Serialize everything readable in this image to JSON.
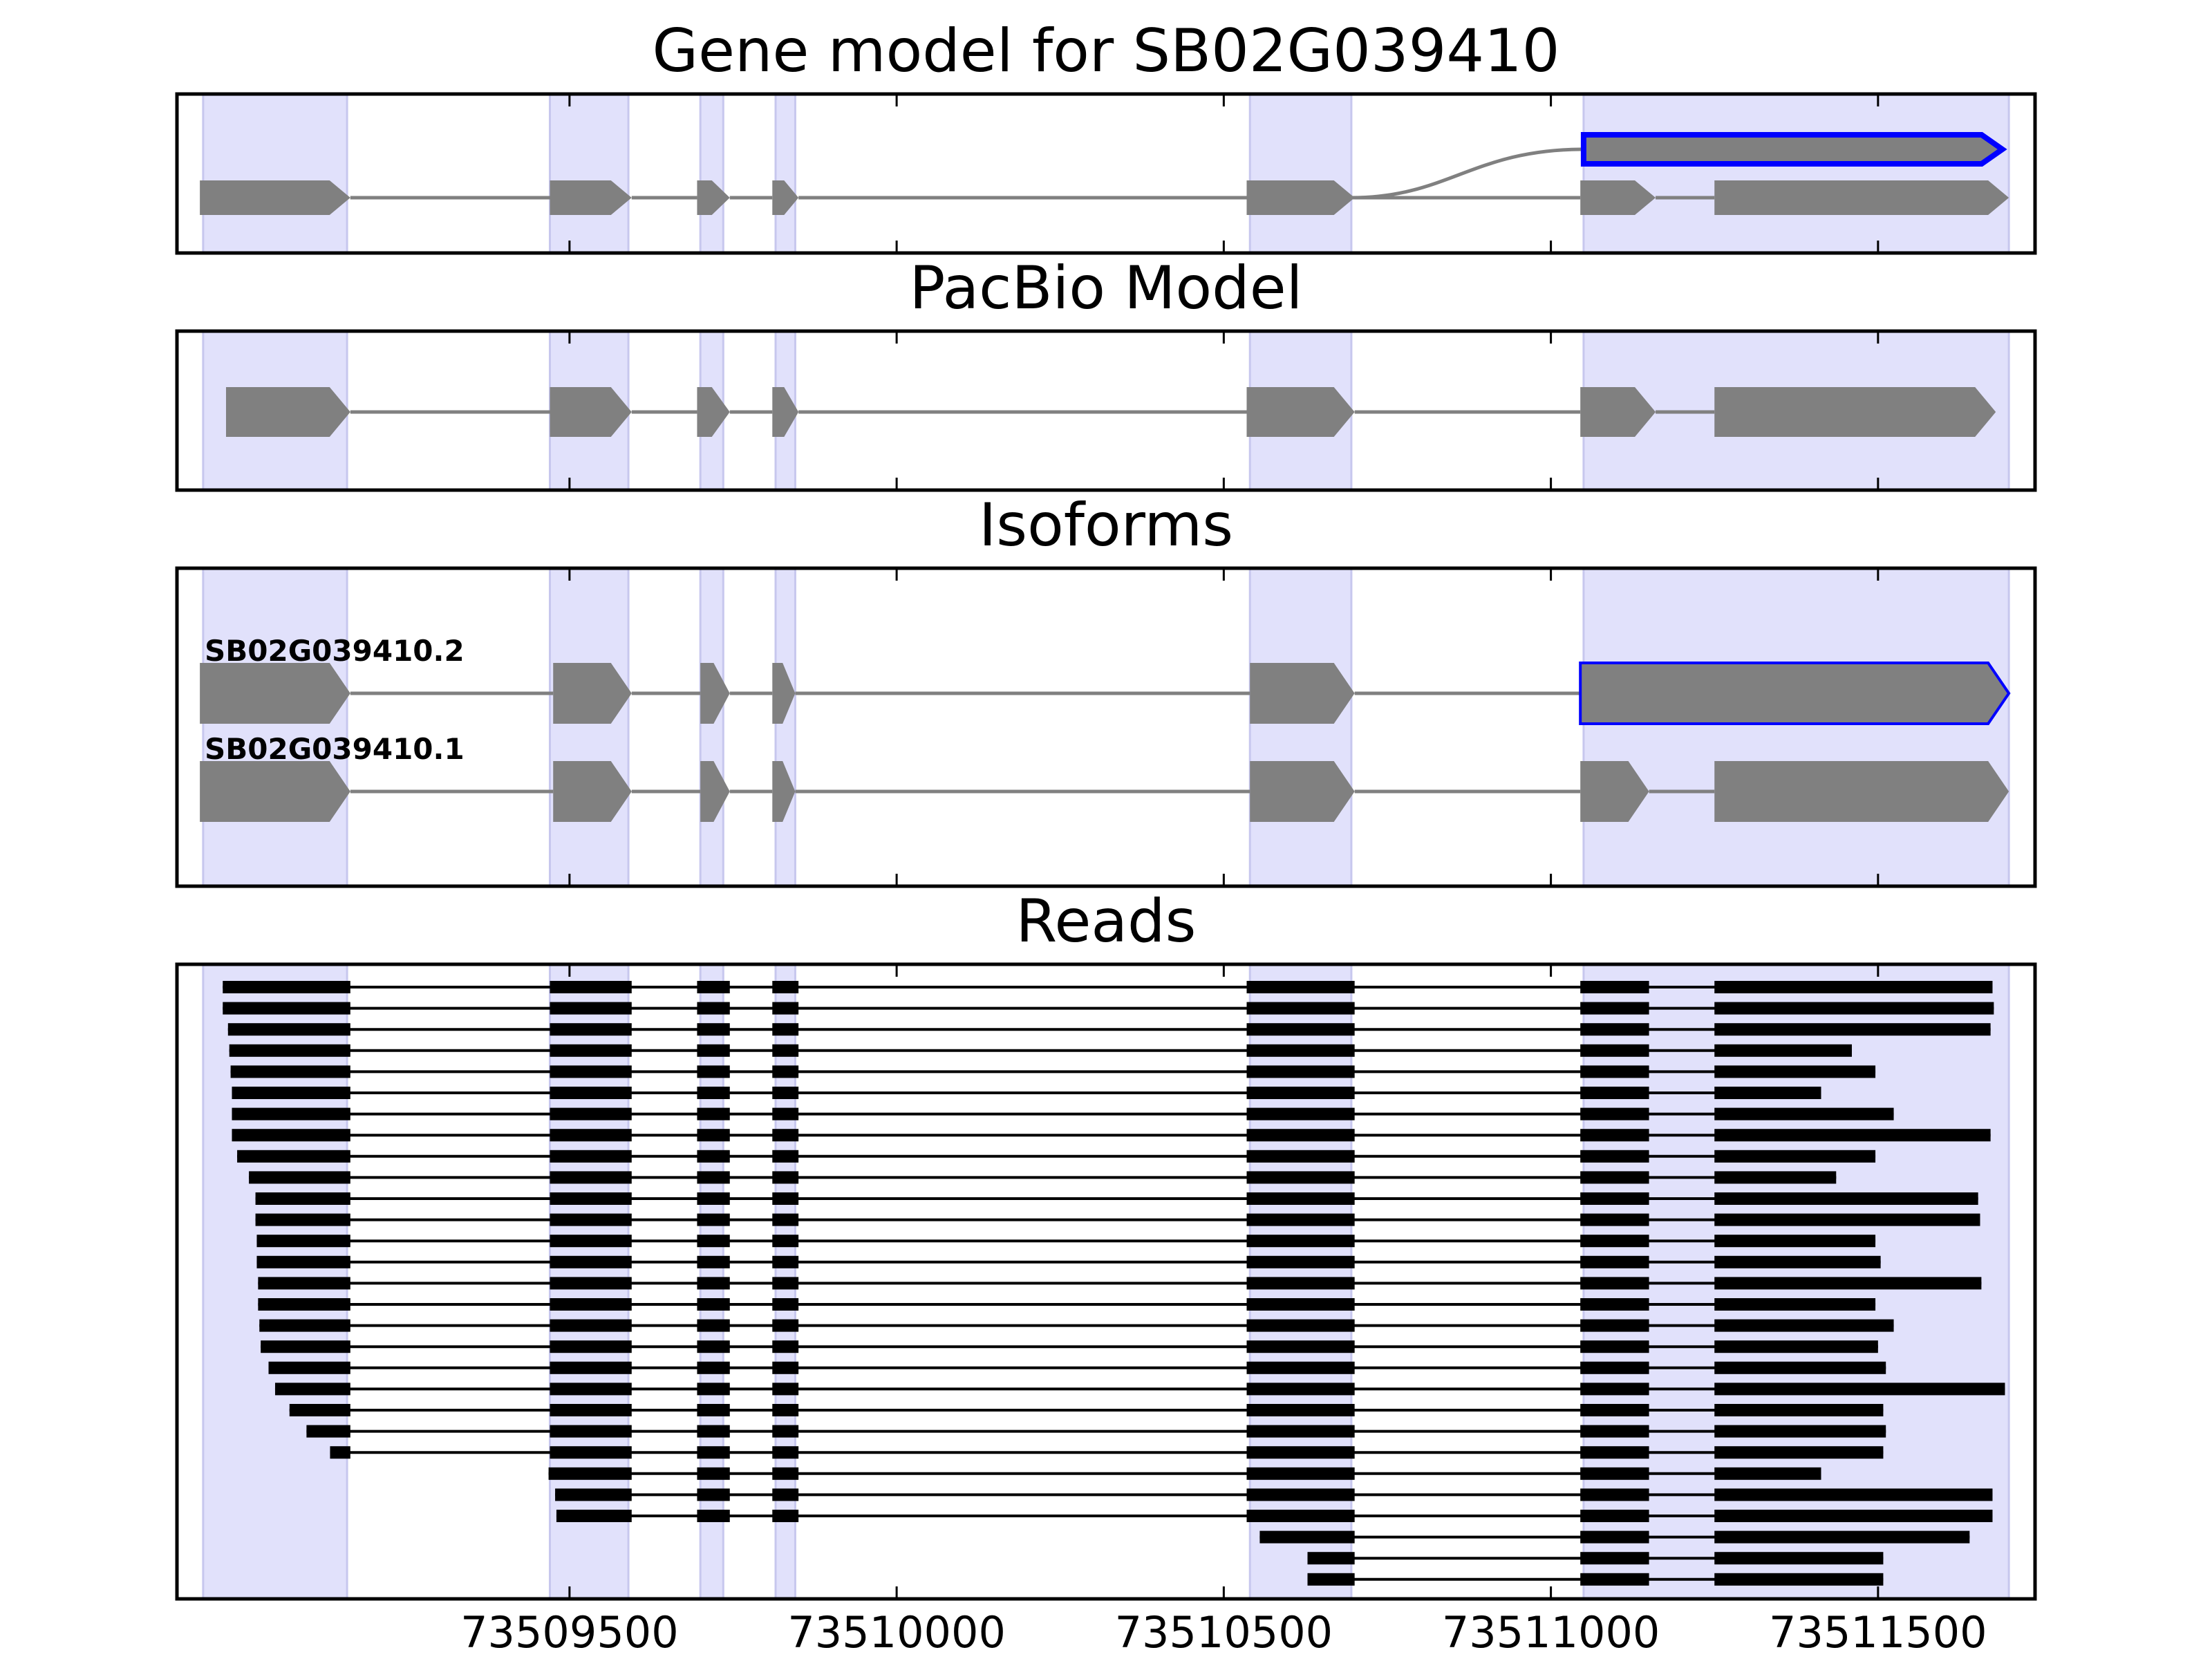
{
  "chart_data": {
    "type": "gene-structure",
    "xlim": [
      73508900,
      73511740
    ],
    "x_ticks": [
      {
        "value": 73509500,
        "label": "73509500"
      },
      {
        "value": 73510000,
        "label": "73510000"
      },
      {
        "value": 73510500,
        "label": "73510500"
      },
      {
        "value": 73511000,
        "label": "73511000"
      },
      {
        "value": 73511500,
        "label": "73511500"
      }
    ],
    "x_tick_labels_on": "Reads",
    "exon_highlights": [
      [
        73508940,
        73509160
      ],
      [
        73509470,
        73509590
      ],
      [
        73509700,
        73509735
      ],
      [
        73509815,
        73509845
      ],
      [
        73510540,
        73510695
      ],
      [
        73511050,
        73511700
      ]
    ],
    "colors": {
      "exon": "#808080",
      "intron": "#808080",
      "highlight": "#e1e1fb",
      "highlight_edge": "#c7c7ee",
      "selected_outline": "#0000ff",
      "read": "#000000"
    },
    "panels": [
      {
        "title": "Gene model for SB02G039410",
        "rows": [
          {
            "exons": [
              [
                73511050,
                73511690
              ]
            ],
            "selected": true,
            "branch_from": 73510695
          },
          {
            "exons": [
              [
                73508935,
                73509165
              ],
              [
                73509470,
                73509595
              ],
              [
                73509695,
                73509745
              ],
              [
                73509810,
                73509850
              ],
              [
                73510535,
                73510700
              ],
              [
                73511045,
                73511160
              ],
              [
                73511250,
                73511700
              ]
            ]
          }
        ]
      },
      {
        "title": "PacBio Model",
        "rows": [
          {
            "exons": [
              [
                73508975,
                73509165
              ],
              [
                73509470,
                73509595
              ],
              [
                73509695,
                73509745
              ],
              [
                73509810,
                73509850
              ],
              [
                73510535,
                73510700
              ],
              [
                73511045,
                73511160
              ],
              [
                73511250,
                73511680
              ]
            ]
          }
        ]
      },
      {
        "title": "Isoforms",
        "rows": [
          {
            "label": "SB02G039410.2",
            "selected": true,
            "exons": [
              [
                73508935,
                73509165
              ],
              [
                73509475,
                73509595
              ],
              [
                73509700,
                73509745
              ],
              [
                73509810,
                73509845
              ],
              [
                73510540,
                73510700
              ],
              [
                73511045,
                73511700
              ]
            ]
          },
          {
            "label": "SB02G039410.1",
            "exons": [
              [
                73508935,
                73509165
              ],
              [
                73509475,
                73509595
              ],
              [
                73509700,
                73509745
              ],
              [
                73509810,
                73509845
              ],
              [
                73510540,
                73510700
              ],
              [
                73511045,
                73511150
              ],
              [
                73511250,
                73511700
              ]
            ]
          }
        ]
      },
      {
        "title": "Reads",
        "reads": [
          [
            73508970,
            73511675
          ],
          [
            73508970,
            73511677
          ],
          [
            73508978,
            73511672
          ],
          [
            73508980,
            73511460
          ],
          [
            73508982,
            73511496
          ],
          [
            73508984,
            73511413
          ],
          [
            73508984,
            73511524
          ],
          [
            73508984,
            73511672
          ],
          [
            73508992,
            73511496
          ],
          [
            73509010,
            73511436
          ],
          [
            73509020,
            73511653
          ],
          [
            73509020,
            73511656
          ],
          [
            73509022,
            73511496
          ],
          [
            73509022,
            73511504
          ],
          [
            73509024,
            73511658
          ],
          [
            73509024,
            73511496
          ],
          [
            73509026,
            73511524
          ],
          [
            73509028,
            73511500
          ],
          [
            73509040,
            73511512
          ],
          [
            73509050,
            73511694
          ],
          [
            73509072,
            73511508
          ],
          [
            73509098,
            73511512
          ],
          [
            73509134,
            73511508
          ],
          [
            73509468,
            73511413
          ],
          [
            73509478,
            73511675
          ],
          [
            73509480,
            73511675
          ],
          [
            73510555,
            73511640
          ],
          [
            73510628,
            73511508
          ],
          [
            73510628,
            73511508
          ]
        ],
        "read_exons": [
          [
            73509470,
            73509595
          ],
          [
            73509695,
            73509745
          ],
          [
            73509810,
            73509850
          ],
          [
            73510535,
            73510700
          ],
          [
            73511045,
            73511150
          ]
        ],
        "read_first_exon_end": 73509165,
        "read_last_exon_start": 73511250
      }
    ]
  }
}
